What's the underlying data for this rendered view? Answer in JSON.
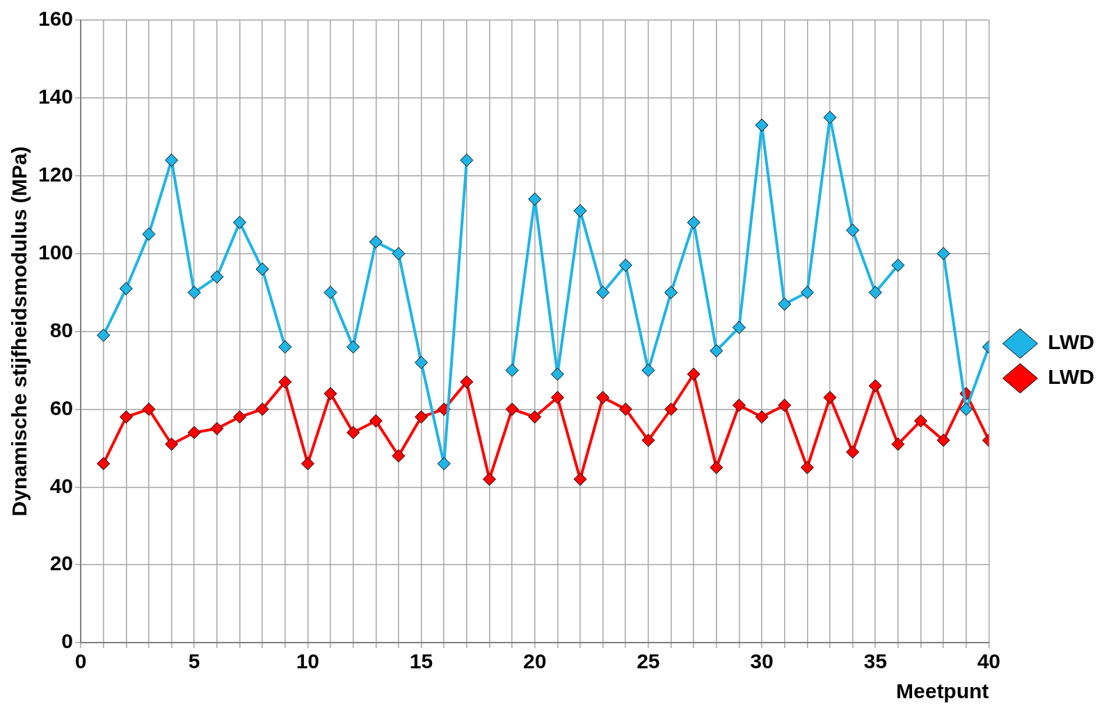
{
  "chart_data": {
    "type": "line",
    "xlabel": "Meetpunt",
    "ylabel": "Dynamische stijfheidsmodulus (MPa)",
    "x": [
      1,
      2,
      3,
      4,
      5,
      6,
      7,
      8,
      9,
      10,
      11,
      12,
      13,
      14,
      15,
      16,
      17,
      18,
      19,
      20,
      21,
      22,
      23,
      24,
      25,
      26,
      27,
      28,
      29,
      30,
      31,
      32,
      33,
      34,
      35,
      36,
      37,
      38,
      39,
      40
    ],
    "series": [
      {
        "name": "LWD",
        "color": "#1fb4e6",
        "values": [
          79,
          91,
          105,
          124,
          90,
          94,
          108,
          96,
          76,
          null,
          90,
          76,
          103,
          100,
          72,
          46,
          124,
          null,
          70,
          114,
          69,
          111,
          90,
          97,
          70,
          90,
          108,
          75,
          81,
          133,
          87,
          90,
          135,
          106,
          90,
          97,
          null,
          100,
          60,
          76
        ]
      },
      {
        "name": "LWD",
        "color": "#ff0000",
        "values": [
          46,
          58,
          60,
          51,
          54,
          55,
          58,
          60,
          67,
          46,
          64,
          54,
          57,
          48,
          58,
          60,
          67,
          42,
          60,
          58,
          63,
          42,
          63,
          60,
          52,
          60,
          69,
          45,
          61,
          58,
          61,
          45,
          63,
          49,
          66,
          51,
          57,
          52,
          64,
          52
        ]
      }
    ],
    "xlim": [
      0,
      40
    ],
    "xticks": [
      0,
      {
        "value": 1,
        "label": null
      },
      {
        "value": 2,
        "label": null
      },
      {
        "value": 3,
        "label": null
      },
      {
        "value": 4,
        "label": null
      },
      5,
      {
        "value": 6,
        "label": null
      },
      {
        "value": 7,
        "label": null
      },
      {
        "value": 8,
        "label": null
      },
      {
        "value": 9,
        "label": null
      },
      10,
      {
        "value": 11,
        "label": null
      },
      {
        "value": 12,
        "label": null
      },
      {
        "value": 13,
        "label": null
      },
      {
        "value": 14,
        "label": null
      },
      15,
      {
        "value": 16,
        "label": null
      },
      {
        "value": 17,
        "label": null
      },
      {
        "value": 18,
        "label": null
      },
      {
        "value": 19,
        "label": null
      },
      20,
      {
        "value": 21,
        "label": null
      },
      {
        "value": 22,
        "label": null
      },
      {
        "value": 23,
        "label": null
      },
      {
        "value": 24,
        "label": null
      },
      25,
      {
        "value": 26,
        "label": null
      },
      {
        "value": 27,
        "label": null
      },
      {
        "value": 28,
        "label": null
      },
      {
        "value": 29,
        "label": null
      },
      30,
      {
        "value": 31,
        "label": null
      },
      {
        "value": 32,
        "label": null
      },
      {
        "value": 33,
        "label": null
      },
      {
        "value": 34,
        "label": null
      },
      35,
      {
        "value": 36,
        "label": null
      },
      {
        "value": 37,
        "label": null
      },
      {
        "value": 38,
        "label": null
      },
      {
        "value": 39,
        "label": null
      },
      40
    ],
    "ylim": [
      0,
      160
    ],
    "yticks": [
      0,
      20,
      40,
      60,
      80,
      100,
      120,
      140,
      160
    ],
    "grid": true,
    "legend": "right",
    "marker": "diamond",
    "line_style": "solid"
  }
}
